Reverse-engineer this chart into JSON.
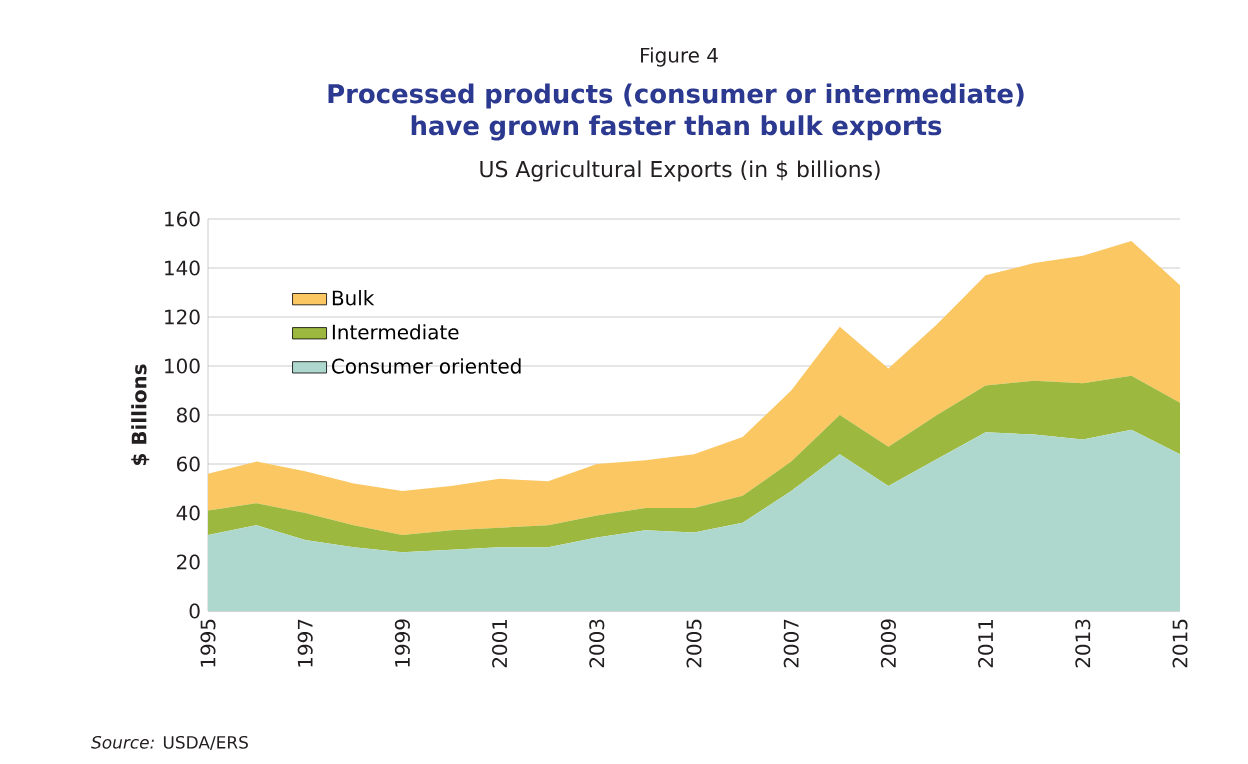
{
  "chart_data": {
    "type": "area",
    "stacked": true,
    "title": "Processed products (consumer or intermediate) have grown faster than bulk exports",
    "subtitle": "US Agricultural Exports (in $ billions)",
    "ylabel": "$ Billions",
    "annotations": [
      "Figure 4",
      "*Source:* USDA/ERS"
    ],
    "x": [
      1995,
      1996,
      1997,
      1998,
      1999,
      2000,
      2001,
      2002,
      2003,
      2004,
      2005,
      2006,
      2007,
      2008,
      2009,
      2010,
      2011,
      2012,
      2013,
      2014,
      2015
    ],
    "xlim": [
      1995,
      2015
    ],
    "xticks": [
      1995,
      1997,
      1999,
      2001,
      2003,
      2005,
      2007,
      2009,
      2011,
      2013,
      2015
    ],
    "ylim": [
      0,
      160
    ],
    "yticks": [
      0,
      20,
      40,
      60,
      80,
      100,
      120,
      140,
      160
    ],
    "grid": "y",
    "legend": "top left",
    "series": [
      {
        "name": "Consumer oriented",
        "color": "#aed8ce",
        "values": [
          31,
          35,
          29,
          26,
          24,
          25,
          26,
          26,
          30,
          33,
          32,
          36,
          49,
          64,
          51,
          62,
          73,
          72,
          70,
          74,
          64
        ]
      },
      {
        "name": "Intermediate",
        "color": "#9cb83e",
        "values": [
          10,
          9,
          11,
          9,
          7,
          8,
          8,
          9,
          9,
          9,
          10,
          11,
          12,
          16,
          16,
          18,
          19,
          22,
          23,
          22,
          21
        ]
      },
      {
        "name": "Bulk",
        "color": "#fbc762",
        "values": [
          15,
          17,
          17,
          17,
          18,
          18,
          20,
          18,
          21,
          19.5,
          22,
          24,
          29,
          36,
          32,
          37,
          45,
          48,
          52,
          55,
          48
        ]
      }
    ]
  }
}
